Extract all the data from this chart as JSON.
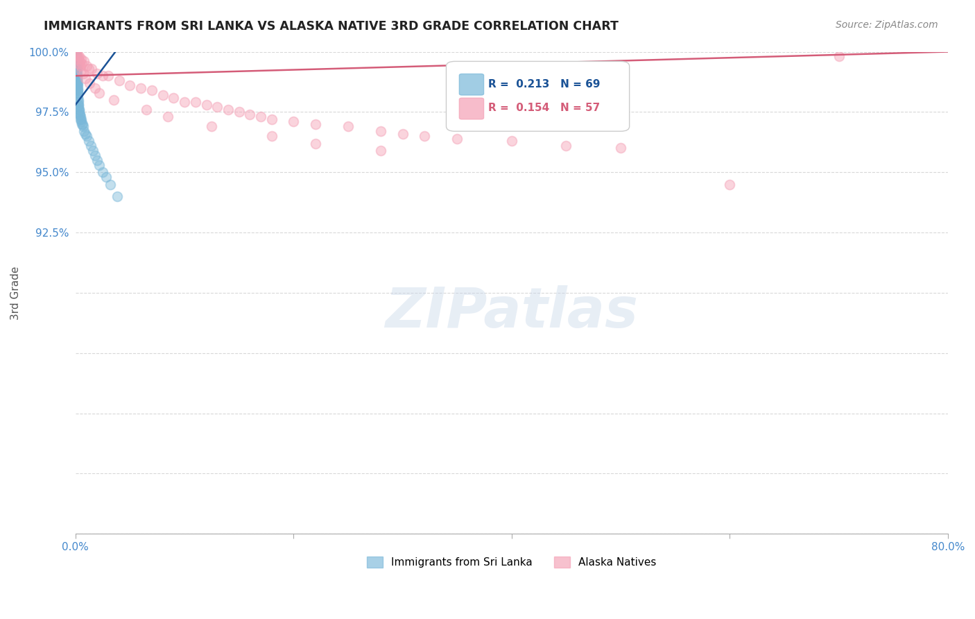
{
  "title": "IMMIGRANTS FROM SRI LANKA VS ALASKA NATIVE 3RD GRADE CORRELATION CHART",
  "source": "Source: ZipAtlas.com",
  "ylabel": "3rd Grade",
  "xlim": [
    0.0,
    80.0
  ],
  "ylim": [
    80.0,
    100.0
  ],
  "blue_label": "Immigrants from Sri Lanka",
  "pink_label": "Alaska Natives",
  "blue_R": 0.213,
  "blue_N": 69,
  "pink_R": 0.154,
  "pink_N": 57,
  "blue_color": "#7ab8d9",
  "pink_color": "#f4a0b5",
  "blue_line_color": "#1a5296",
  "pink_line_color": "#d45c78",
  "background_color": "#ffffff",
  "grid_color": "#c8c8c8",
  "title_color": "#222222",
  "axis_label_color": "#555555",
  "ytick_color": "#4488cc",
  "xtick_color": "#4488cc",
  "source_color": "#888888",
  "blue_scatter_x": [
    0.02,
    0.02,
    0.03,
    0.03,
    0.04,
    0.04,
    0.05,
    0.05,
    0.06,
    0.06,
    0.07,
    0.07,
    0.08,
    0.08,
    0.09,
    0.09,
    0.1,
    0.1,
    0.11,
    0.11,
    0.12,
    0.12,
    0.13,
    0.13,
    0.14,
    0.14,
    0.15,
    0.15,
    0.16,
    0.16,
    0.17,
    0.17,
    0.18,
    0.18,
    0.19,
    0.2,
    0.21,
    0.22,
    0.23,
    0.24,
    0.25,
    0.26,
    0.27,
    0.28,
    0.3,
    0.32,
    0.35,
    0.38,
    0.4,
    0.43,
    0.47,
    0.5,
    0.55,
    0.6,
    0.65,
    0.7,
    0.8,
    0.9,
    1.0,
    1.2,
    1.4,
    1.6,
    1.8,
    2.0,
    2.2,
    2.5,
    2.8,
    3.2,
    3.8
  ],
  "blue_scatter_y": [
    100.0,
    99.9,
    100.0,
    99.8,
    99.9,
    99.7,
    99.8,
    99.6,
    99.7,
    99.5,
    99.6,
    99.4,
    99.6,
    99.3,
    99.5,
    99.2,
    99.4,
    99.1,
    99.3,
    99.0,
    99.2,
    98.9,
    99.1,
    98.8,
    99.0,
    98.7,
    98.9,
    98.6,
    98.8,
    98.5,
    98.7,
    98.4,
    98.6,
    98.3,
    98.5,
    98.4,
    98.3,
    98.2,
    98.1,
    98.0,
    97.9,
    97.8,
    97.8,
    97.7,
    97.6,
    97.6,
    97.5,
    97.4,
    97.4,
    97.3,
    97.2,
    97.2,
    97.1,
    97.0,
    97.0,
    96.9,
    96.7,
    96.6,
    96.5,
    96.3,
    96.1,
    95.9,
    95.7,
    95.5,
    95.3,
    95.0,
    94.8,
    94.5,
    94.0
  ],
  "pink_scatter_x": [
    0.1,
    0.15,
    0.2,
    0.25,
    0.3,
    0.4,
    0.5,
    0.6,
    0.8,
    1.0,
    1.2,
    1.5,
    2.0,
    2.5,
    3.0,
    4.0,
    5.0,
    6.0,
    7.0,
    8.0,
    9.0,
    10.0,
    11.0,
    12.0,
    13.0,
    14.0,
    15.0,
    16.0,
    17.0,
    18.0,
    20.0,
    22.0,
    25.0,
    28.0,
    30.0,
    32.0,
    35.0,
    40.0,
    45.0,
    50.0,
    0.35,
    0.45,
    0.55,
    0.7,
    0.9,
    1.3,
    1.8,
    2.2,
    3.5,
    6.5,
    8.5,
    12.5,
    18.0,
    22.0,
    28.0,
    60.0,
    70.0
  ],
  "pink_scatter_y": [
    100.0,
    99.9,
    99.8,
    99.7,
    99.8,
    99.6,
    99.7,
    99.5,
    99.6,
    99.4,
    99.3,
    99.3,
    99.1,
    99.0,
    99.0,
    98.8,
    98.6,
    98.5,
    98.4,
    98.2,
    98.1,
    97.9,
    97.9,
    97.8,
    97.7,
    97.6,
    97.5,
    97.4,
    97.3,
    97.2,
    97.1,
    97.0,
    96.9,
    96.7,
    96.6,
    96.5,
    96.4,
    96.3,
    96.1,
    96.0,
    99.5,
    99.4,
    99.2,
    99.1,
    98.9,
    98.7,
    98.5,
    98.3,
    98.0,
    97.6,
    97.3,
    96.9,
    96.5,
    96.2,
    95.9,
    94.5,
    99.8
  ],
  "pink_trendline_x0": 0.0,
  "pink_trendline_y0": 99.0,
  "pink_trendline_x1": 80.0,
  "pink_trendline_y1": 100.0,
  "blue_trendline_x0": 0.0,
  "blue_trendline_y0": 97.8,
  "blue_trendline_x1": 4.0,
  "blue_trendline_y1": 100.2
}
